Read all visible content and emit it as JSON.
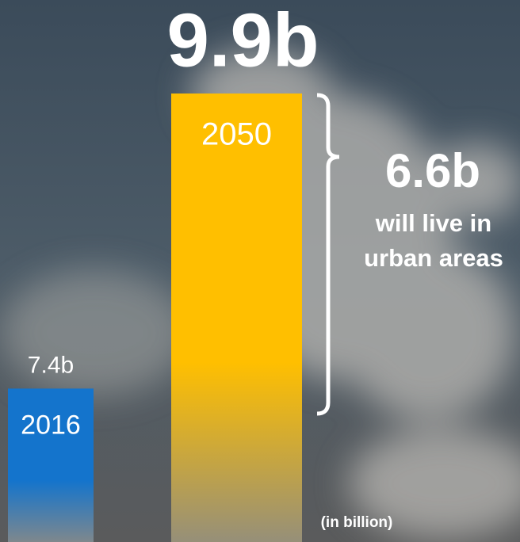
{
  "chart_data": {
    "type": "bar",
    "categories": [
      "2016",
      "2050"
    ],
    "values": [
      7.4,
      9.9
    ],
    "value_labels": [
      "7.4b",
      "9.9b"
    ],
    "colors": [
      "#1474cc",
      "#ffbf00"
    ],
    "ylim": [
      6.1,
      9.9
    ],
    "annotation": {
      "value": 6.6,
      "label": "6.6b",
      "text": [
        "will live in",
        "urban areas"
      ]
    },
    "unit": "(in billion)"
  }
}
